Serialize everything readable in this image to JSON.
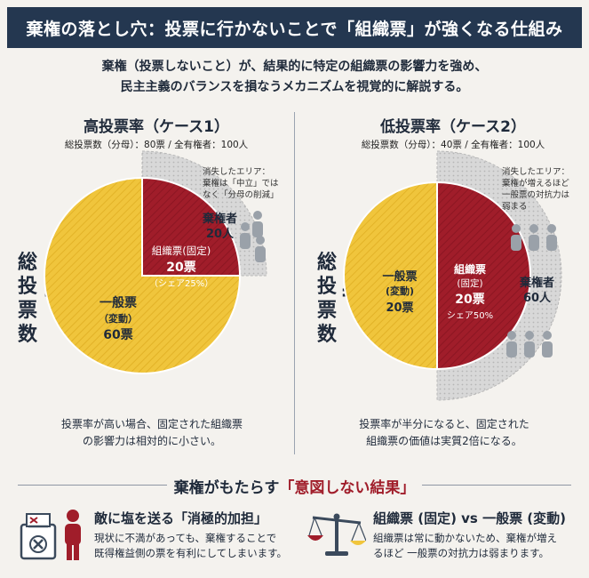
{
  "header": {
    "title": "棄権の落とし穴：投票に行かないことで「組織票」が強くなる仕組み"
  },
  "intro": {
    "line1": "棄権（投票しないこと）が、結果的に特定の組織票の影響力を強め、",
    "line2": "民主主義のバランスを損なうメカニズムを視覚的に解説する。"
  },
  "side_label": {
    "chars": [
      "総",
      "投",
      "票",
      "数"
    ],
    "equals": "="
  },
  "case1": {
    "title": "高投票率（ケース1）",
    "subtitle": "総投票数（分母）：80票 / 全有権者：100人",
    "lost_note": [
      "消失したエリア：",
      "棄権は「中立」では",
      "なく「分母の削減」"
    ],
    "abstain": [
      "棄権者",
      "20人"
    ],
    "org": [
      "組織票(固定)",
      "20票",
      "（シェア25%）"
    ],
    "general": [
      "一般票",
      "（変動）",
      "60票"
    ],
    "caption": [
      "投票率が高い場合、固定された組織票",
      "の影響力は相対的に小さい。"
    ]
  },
  "case2": {
    "title": "低投票率（ケース2）",
    "subtitle": "総投票数（分母）：40票 / 全有権者：100人",
    "lost_note": [
      "消失したエリア：",
      "棄権が増えるほど",
      "一般票の対抗力は",
      "弱まる"
    ],
    "abstain": [
      "棄権者",
      "60人"
    ],
    "org": [
      "組織票",
      "(固定)",
      "20票",
      "シェア50%"
    ],
    "general": [
      "一般票",
      "(変動)",
      "20票"
    ],
    "caption": [
      "投票率が半分になると、固定された",
      "組織票の価値は実質2倍になる。"
    ]
  },
  "result": {
    "title_prefix": "棄権がもたらす",
    "title_highlight": "「意図しない結果」"
  },
  "bottom_left": {
    "title": "敵に塩を送る「消極的加担」",
    "text1": "現状に不満があっても、棄権することで",
    "text2": "既得権益側の票を有利にしてしまいます。",
    "icon": "ballot-box-x-icon"
  },
  "bottom_right": {
    "title": "組織票 (固定) vs 一般票 (変動)",
    "text1": "組織票は常に動かないため、棄権が増え",
    "text2": "るほど 一般票の対抗力は弱まります。",
    "icon": "balance-scale-icon"
  },
  "chart_data": [
    {
      "type": "pie",
      "title": "高投票率（ケース1）",
      "total_voters": 100,
      "total_votes": 80,
      "slices": [
        {
          "name": "組織票(固定)",
          "value": 20,
          "share": "25%"
        },
        {
          "name": "一般票",
          "value": 60
        },
        {
          "name": "棄権者",
          "value": 20
        }
      ]
    },
    {
      "type": "pie",
      "title": "低投票率（ケース2）",
      "total_voters": 100,
      "total_votes": 40,
      "slices": [
        {
          "name": "組織票",
          "value": 20,
          "share": "50%"
        },
        {
          "name": "一般票",
          "value": 20
        },
        {
          "name": "棄権者",
          "value": 60
        }
      ]
    }
  ],
  "colors": {
    "header_bg": "#243750",
    "org_red": "#a01d2a",
    "general_yellow": "#f0c53c",
    "abstain_gray": "#d3d3d3"
  }
}
